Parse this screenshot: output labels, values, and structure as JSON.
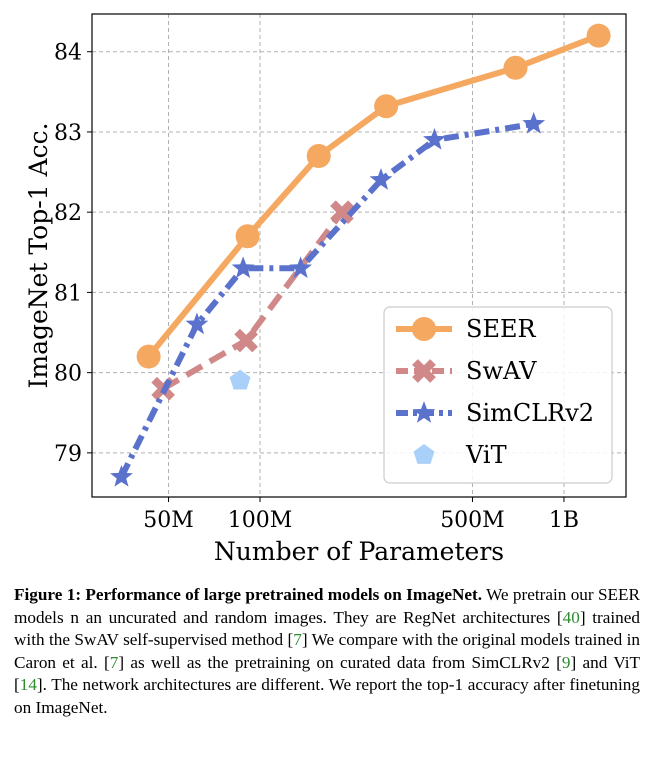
{
  "chart_data": {
    "type": "line",
    "x_scale": "log",
    "grid": true,
    "xlabel": "Number of Parameters",
    "ylabel": "ImageNet Top-1 Acc.",
    "xlim": [
      28,
      1600
    ],
    "ylim": [
      78.45,
      84.47
    ],
    "x_ticks": [
      {
        "value": 50,
        "label": "50M"
      },
      {
        "value": 100,
        "label": "100M"
      },
      {
        "value": 500,
        "label": "500M"
      },
      {
        "value": 1000,
        "label": "1B"
      }
    ],
    "y_ticks": [
      {
        "value": 79,
        "label": "79"
      },
      {
        "value": 80,
        "label": "80"
      },
      {
        "value": 81,
        "label": "81"
      },
      {
        "value": 82,
        "label": "82"
      },
      {
        "value": 83,
        "label": "83"
      },
      {
        "value": 84,
        "label": "84"
      }
    ],
    "legend_position": "bottom-right",
    "series": [
      {
        "name": "SEER",
        "color": "#f4a860",
        "line": "solid",
        "marker": "circle",
        "x": [
          43,
          91,
          156,
          260,
          693,
          1300
        ],
        "y": [
          80.2,
          81.7,
          82.7,
          83.32,
          83.8,
          84.2
        ]
      },
      {
        "name": "SwAV",
        "color": "#d08888",
        "line": "dashed",
        "marker": "x",
        "x": [
          48,
          90,
          186
        ],
        "y": [
          79.8,
          80.4,
          82.0
        ]
      },
      {
        "name": "SimCLRv2",
        "color": "#5a72cc",
        "line": "dashdot",
        "marker": "star",
        "x": [
          35,
          62,
          88,
          136,
          250,
          375,
          795
        ],
        "y": [
          78.7,
          80.6,
          81.3,
          81.3,
          82.4,
          82.9,
          83.1
        ]
      },
      {
        "name": "ViT",
        "color": "#a8d0f8",
        "line": "none",
        "marker": "pentagon",
        "x": [
          86
        ],
        "y": [
          79.9
        ]
      }
    ]
  },
  "caption": {
    "label": "Figure 1: Performance of large pretrained models on ImageNet.",
    "parts": [
      " We pretrain our SEER models n an uncurated and random images.  They are RegNet architectures [",
      "40",
      "] trained with the SwAV self-supervised method [",
      "7",
      "] We compare with the original models trained in Caron et al. [",
      "7",
      "] as well as the pretraining on curated data from SimCLRv2 [",
      "9",
      "] and ViT [",
      "14",
      "].  The network architectures are different.  We report the top-1 accuracy after finetuning on ImageNet."
    ]
  }
}
